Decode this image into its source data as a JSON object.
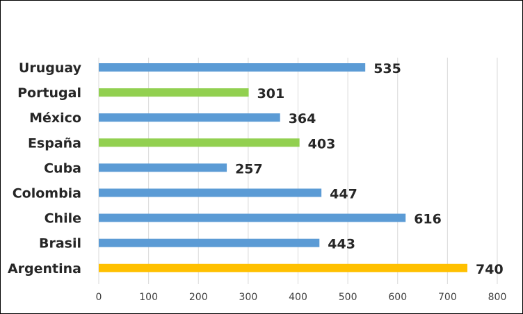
{
  "chart_data": {
    "type": "bar",
    "orientation": "horizontal",
    "title": "",
    "xlabel": "",
    "ylabel": "",
    "categories": [
      "Uruguay",
      "Portugal",
      "México",
      "España",
      "Cuba",
      "Colombia",
      "Chile",
      "Brasil",
      "Argentina"
    ],
    "values": [
      535,
      301,
      364,
      403,
      257,
      447,
      616,
      443,
      740
    ],
    "value_labels": [
      "535",
      "301",
      "364",
      "403",
      "257",
      "447",
      "616",
      "443",
      "740"
    ],
    "bar_colors": [
      "#5b9bd5",
      "#92d050",
      "#5b9bd5",
      "#92d050",
      "#5b9bd5",
      "#5b9bd5",
      "#5b9bd5",
      "#5b9bd5",
      "#ffc000"
    ],
    "xlim": [
      0,
      800
    ],
    "x_ticks": [
      "0",
      "100",
      "200",
      "300",
      "400",
      "500",
      "600",
      "700",
      "800"
    ],
    "x_tick_values": [
      0,
      100,
      200,
      300,
      400,
      500,
      600,
      700,
      800
    ],
    "grid": "vertical",
    "grid_color": "#d9d9d9",
    "legend": "none"
  }
}
